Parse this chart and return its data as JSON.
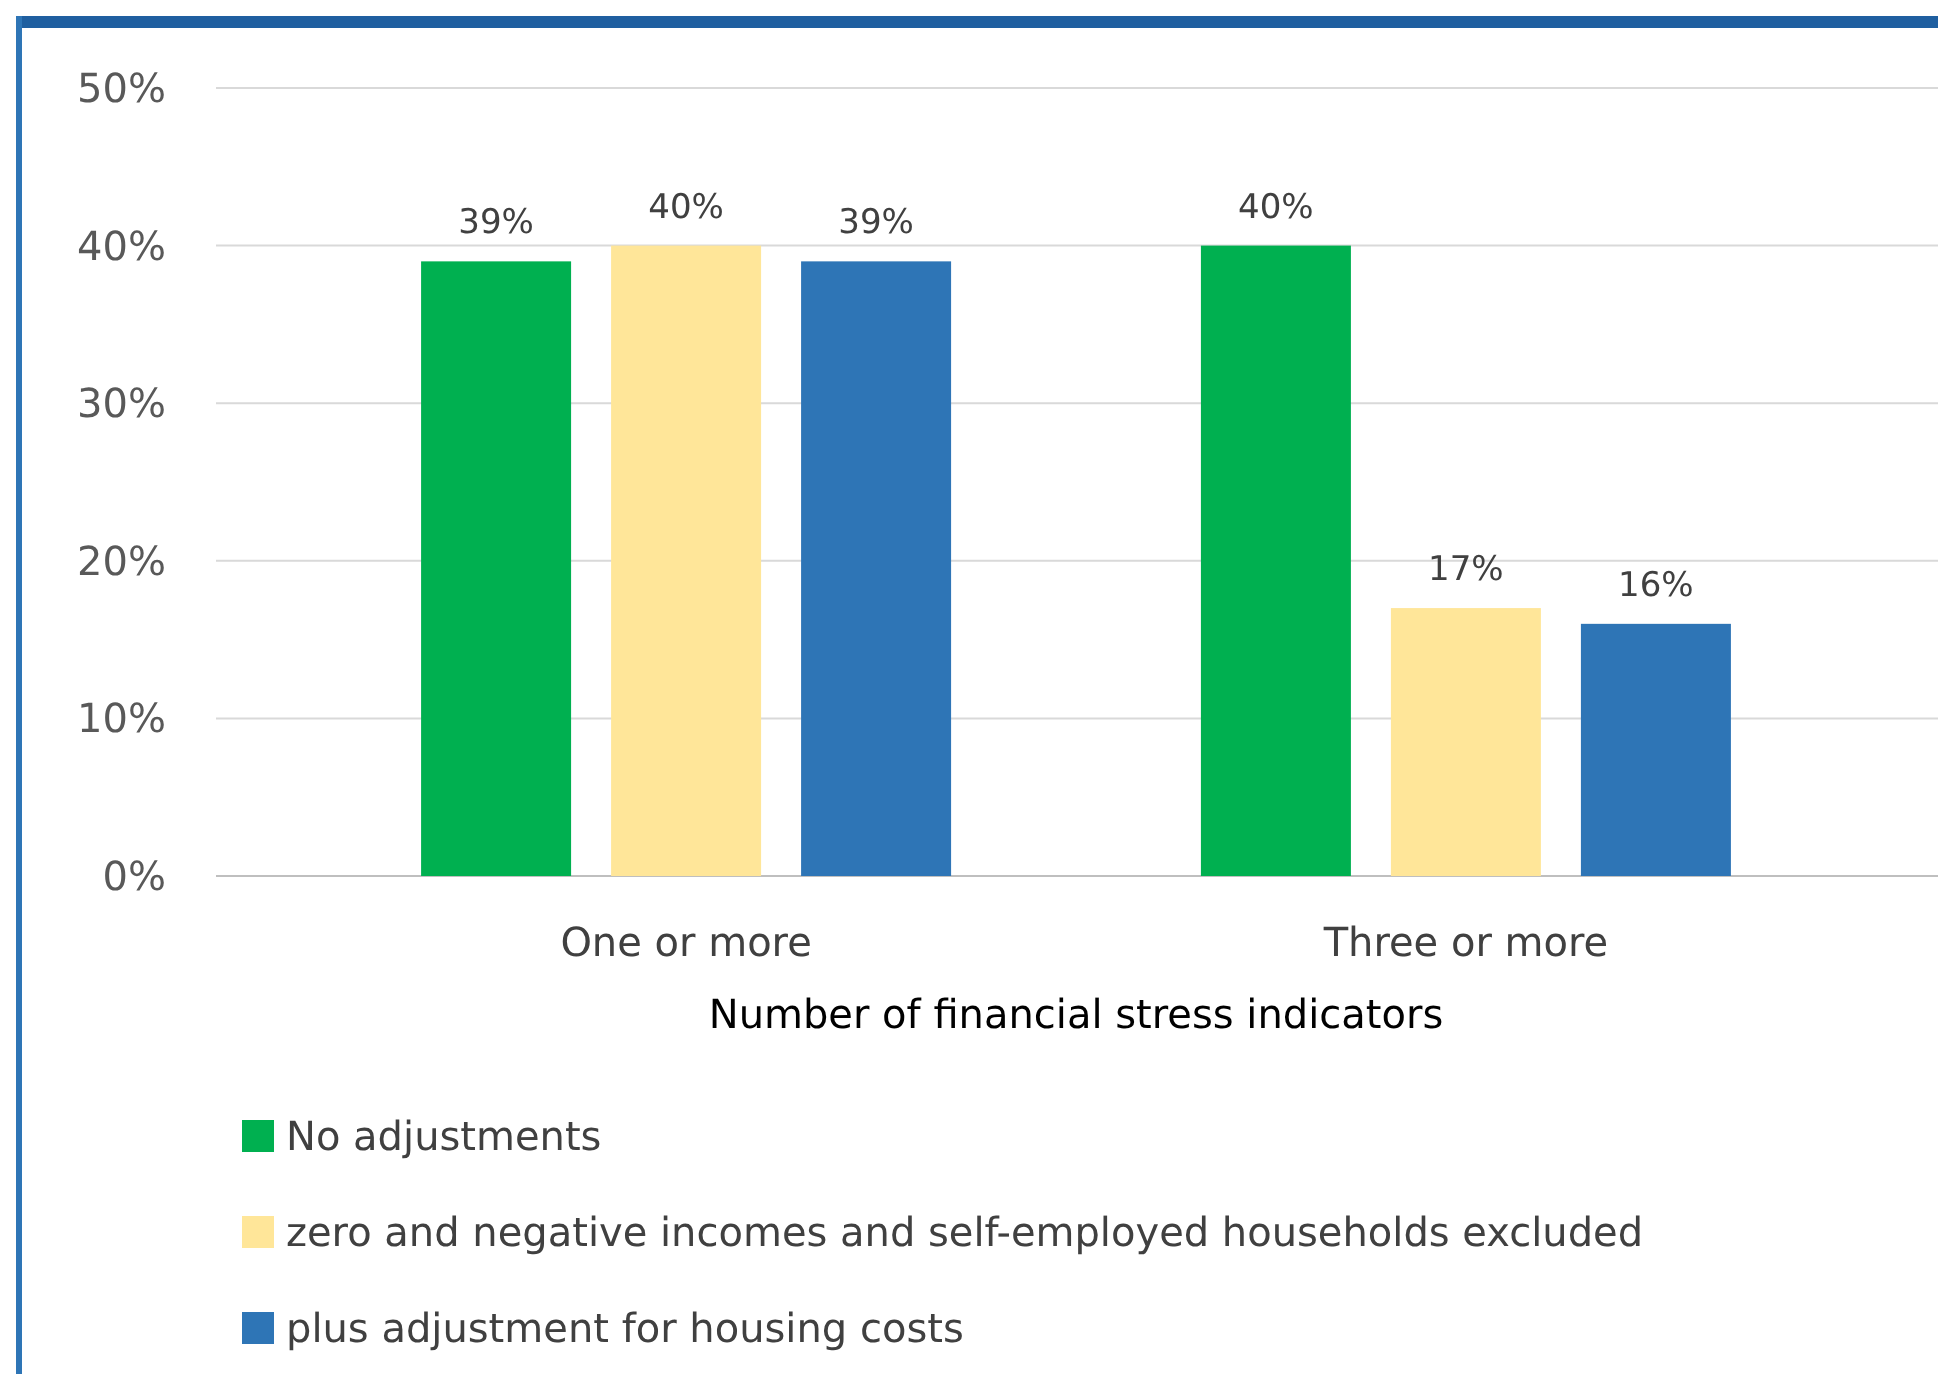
{
  "chart_data": {
    "type": "bar",
    "xlabel": "Number of financial stress indicators",
    "categories": [
      "One or more",
      "Three or more"
    ],
    "series": [
      {
        "name": "No adjustments",
        "color": "#00b050",
        "values": [
          39,
          40
        ],
        "value_labels": [
          "39%",
          "40%"
        ]
      },
      {
        "name": "zero and negative incomes and self-employed households excluded",
        "color": "#ffe699",
        "values": [
          40,
          17
        ],
        "value_labels": [
          "40%",
          "17%"
        ]
      },
      {
        "name": "plus adjustment for housing costs",
        "color": "#2e75b6",
        "values": [
          39,
          16
        ],
        "value_labels": [
          "39%",
          "16%"
        ]
      }
    ],
    "ylim": [
      0,
      50
    ],
    "yticks": [
      {
        "value": 0,
        "label": "0%"
      },
      {
        "value": 10,
        "label": "10%"
      },
      {
        "value": 20,
        "label": "20%"
      },
      {
        "value": 30,
        "label": "30%"
      },
      {
        "value": 40,
        "label": "40%"
      },
      {
        "value": 50,
        "label": "50%"
      }
    ],
    "grid": "y",
    "legend": "bottom"
  }
}
